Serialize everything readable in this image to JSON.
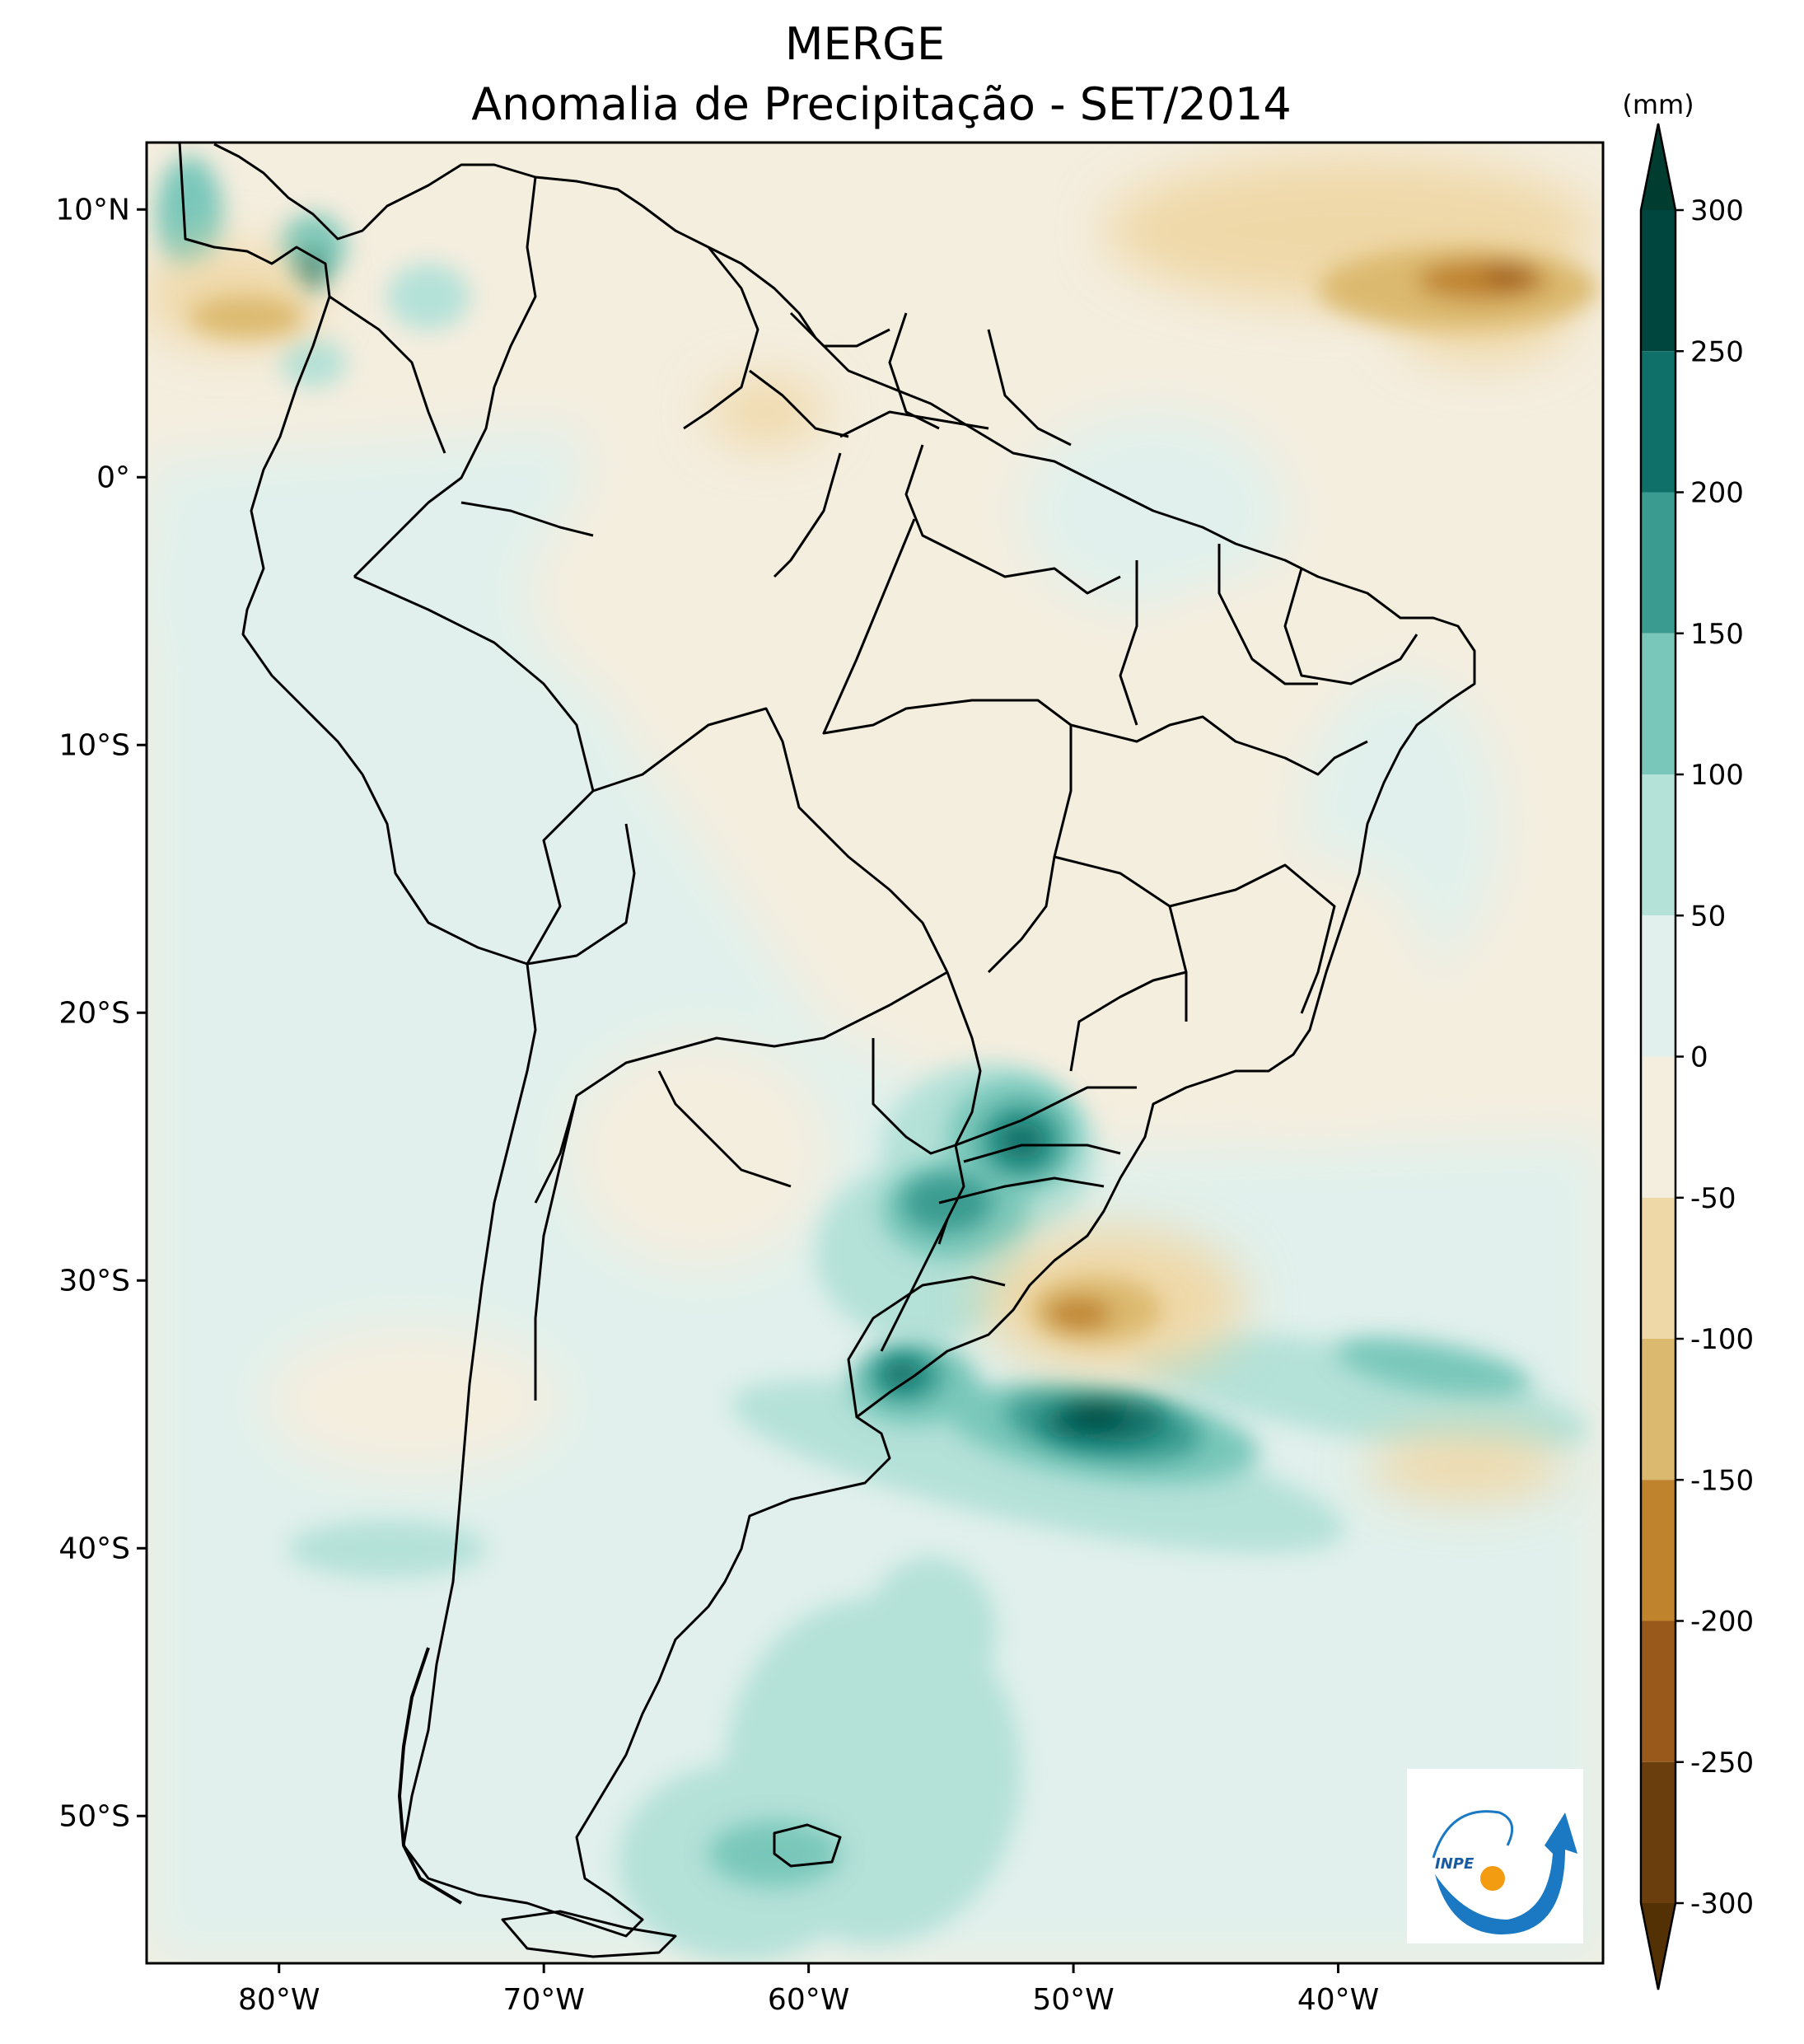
{
  "title": {
    "line1": "MERGE",
    "line2": "Anomalia de Precipitação - SET/2014"
  },
  "axes": {
    "lat_labels": [
      "10°N",
      "0°",
      "10°S",
      "20°S",
      "30°S",
      "40°S",
      "50°S"
    ],
    "lon_labels": [
      "80°W",
      "70°W",
      "60°W",
      "50°W",
      "40°W"
    ],
    "lat_values": [
      10,
      0,
      -10,
      -20,
      -30,
      -40,
      -50
    ],
    "lon_values": [
      -80,
      -70,
      -60,
      -50,
      -40
    ],
    "lat_range": [
      -55.5,
      12.5
    ],
    "lon_range": [
      -85,
      -30
    ]
  },
  "colorbar": {
    "unit": "(mm)",
    "ticks": [
      "300",
      "250",
      "200",
      "150",
      "100",
      "50",
      "0",
      "-50",
      "-100",
      "-150",
      "-200",
      "-250",
      "-300"
    ],
    "tick_values": [
      300,
      250,
      200,
      150,
      100,
      50,
      0,
      -50,
      -100,
      -150,
      -200,
      -250,
      -300
    ],
    "levels": [
      {
        "from": 250,
        "to": 300,
        "color": "#01463e"
      },
      {
        "from": 200,
        "to": 250,
        "color": "#0e7068"
      },
      {
        "from": 150,
        "to": 200,
        "color": "#3a9b90"
      },
      {
        "from": 100,
        "to": 150,
        "color": "#79c7ba"
      },
      {
        "from": 50,
        "to": 100,
        "color": "#b4e1d8"
      },
      {
        "from": 0,
        "to": 50,
        "color": "#e1f0ec"
      },
      {
        "from": -50,
        "to": 0,
        "color": "#f4eedf"
      },
      {
        "from": -100,
        "to": -50,
        "color": "#efd8a8"
      },
      {
        "from": -150,
        "to": -100,
        "color": "#dbb96e"
      },
      {
        "from": -200,
        "to": -150,
        "color": "#bf832e"
      },
      {
        "from": -250,
        "to": -200,
        "color": "#99591a"
      },
      {
        "from": -300,
        "to": -250,
        "color": "#6b3f0d"
      }
    ],
    "over_color": "#003c30",
    "under_color": "#543005"
  },
  "logo": {
    "text": "INPE"
  }
}
